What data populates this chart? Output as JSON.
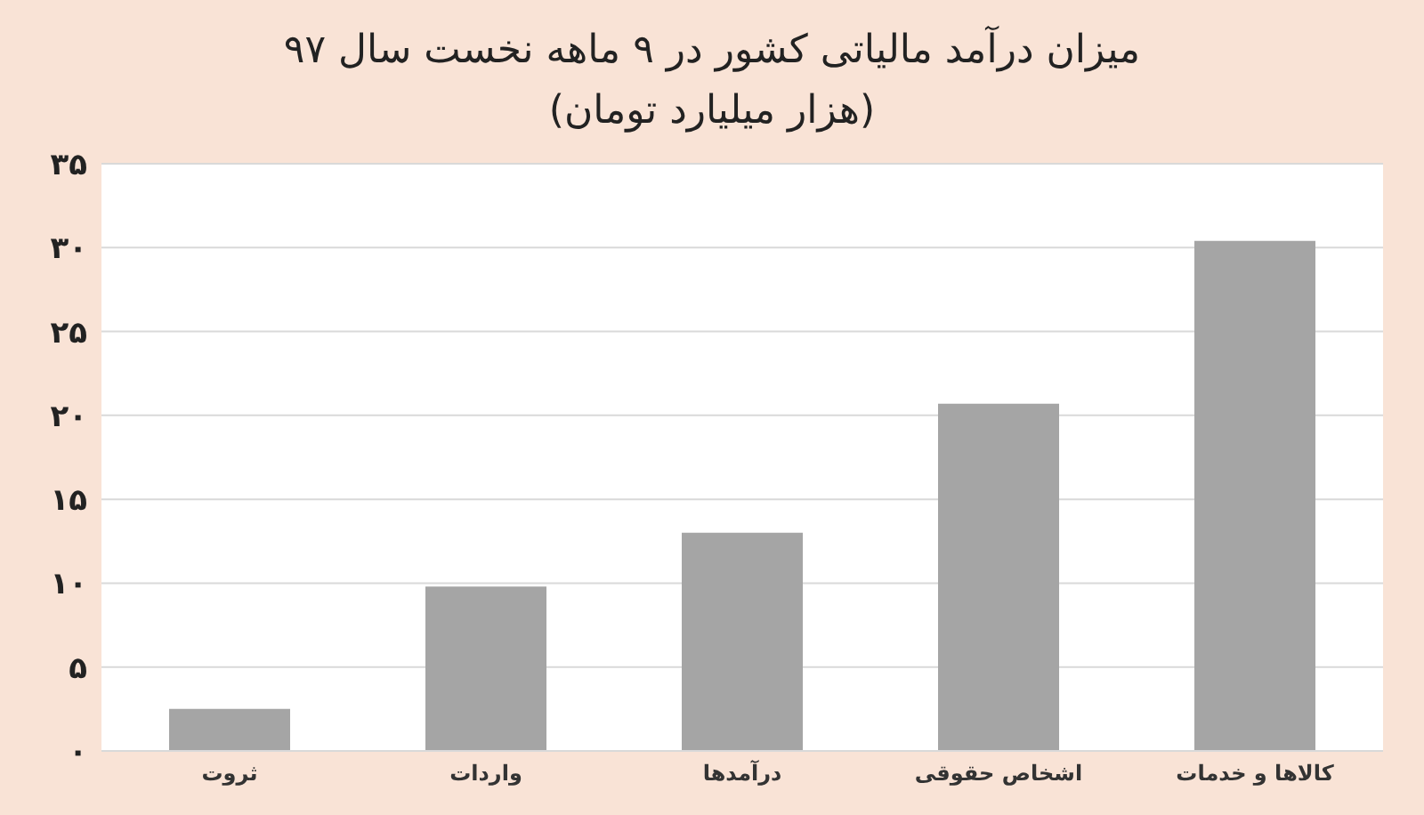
{
  "chart_data": {
    "type": "bar",
    "title": "میزان درآمد مالیاتی کشور در ۹ ماهه نخست سال ۹۷",
    "subtitle": "(هزار میلیارد تومان)",
    "categories": [
      "ثروت",
      "واردات",
      "درآمدها",
      "اشخاص حقوقی",
      "کالاها و خدمات"
    ],
    "values": [
      2.5,
      9.8,
      13.0,
      20.7,
      30.4
    ],
    "color": "#a5a5a5",
    "ylim": [
      0,
      35
    ],
    "yticks": [
      {
        "value": 0,
        "label": "۰"
      },
      {
        "value": 5,
        "label": "۵"
      },
      {
        "value": 10,
        "label": "۱۰"
      },
      {
        "value": 15,
        "label": "۱۵"
      },
      {
        "value": 20,
        "label": "۲۰"
      },
      {
        "value": 25,
        "label": "۲۵"
      },
      {
        "value": 30,
        "label": "۳۰"
      },
      {
        "value": 35,
        "label": "۳۵"
      }
    ],
    "grid": "y"
  }
}
